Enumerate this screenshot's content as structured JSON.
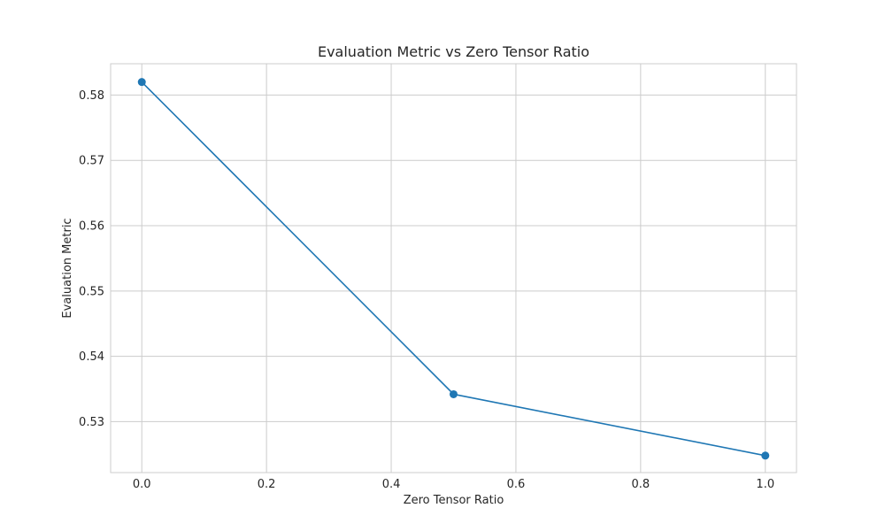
{
  "chart_data": {
    "type": "line",
    "title": "Evaluation Metric vs Zero Tensor Ratio",
    "xlabel": "Zero Tensor Ratio",
    "ylabel": "Evaluation Metric",
    "xlim": [
      -0.05,
      1.05
    ],
    "ylim": [
      0.5222,
      0.5848
    ],
    "xticks": [
      0.0,
      0.2,
      0.4,
      0.6,
      0.8,
      1.0
    ],
    "xtick_labels": [
      "0.0",
      "0.2",
      "0.4",
      "0.6",
      "0.8",
      "1.0"
    ],
    "yticks": [
      0.53,
      0.54,
      0.55,
      0.56,
      0.57,
      0.58
    ],
    "ytick_labels": [
      "0.53",
      "0.54",
      "0.55",
      "0.56",
      "0.57",
      "0.58"
    ],
    "grid": true,
    "series": [
      {
        "x": [
          0.0,
          0.5,
          1.0
        ],
        "y": [
          0.582,
          0.5342,
          0.5248
        ],
        "color": "#1f77b4",
        "marker": "circle"
      }
    ]
  },
  "colors": {
    "grid": "#cccccc",
    "spine": "#cccccc",
    "text": "#262626"
  }
}
